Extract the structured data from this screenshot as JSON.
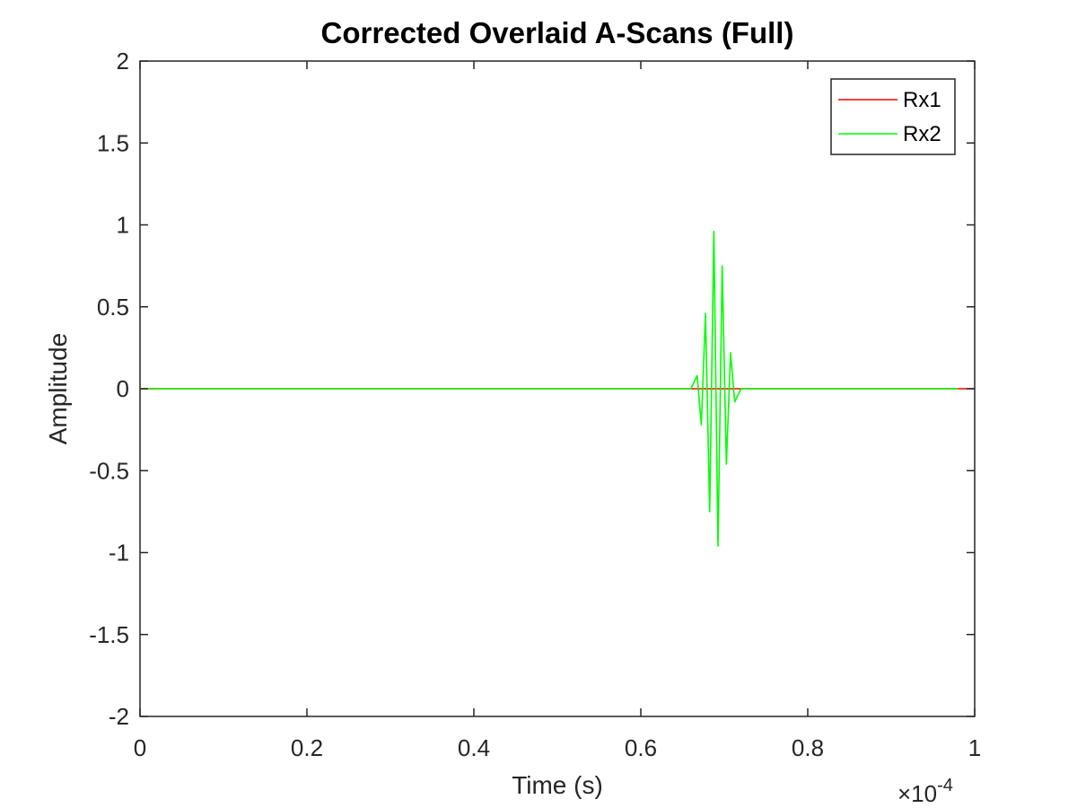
{
  "chart_data": {
    "type": "line",
    "title": "Corrected Overlaid A-Scans (Full)",
    "xlabel": "Time (s)",
    "ylabel": "Amplitude",
    "x_exponent_label": "×10",
    "x_exponent_power": "-4",
    "xlim": [
      0,
      0.0001
    ],
    "ylim": [
      -2,
      2
    ],
    "x_ticks": [
      0,
      0.2,
      0.4,
      0.6,
      0.8,
      1
    ],
    "x_tick_labels": [
      "0",
      "0.2",
      "0.4",
      "0.6",
      "0.8",
      "1"
    ],
    "y_ticks": [
      -2,
      -1.5,
      -1,
      -0.5,
      0,
      0.5,
      1,
      1.5,
      2
    ],
    "y_tick_labels": [
      "-2",
      "-1.5",
      "-1",
      "-0.5",
      "0",
      "0.5",
      "1",
      "1.5",
      "2"
    ],
    "x_tick_scale": 0.0001,
    "grid": false,
    "legend_position": "top-right",
    "series": [
      {
        "name": "Rx1",
        "color": "#ff0000",
        "x": [
          0,
          9.8e-05,
          0.0001
        ],
        "y": [
          0,
          0,
          0
        ]
      },
      {
        "name": "Rx2",
        "color": "#00ff00",
        "x": [
          0,
          6.6e-05,
          6.675e-05,
          6.725e-05,
          6.775e-05,
          6.825e-05,
          6.875e-05,
          6.925e-05,
          6.975e-05,
          7.025e-05,
          7.075e-05,
          7.125e-05,
          7.2e-05,
          9.8e-05
        ],
        "y": [
          0,
          0,
          0.08,
          -0.22,
          0.46,
          -0.75,
          0.96,
          -0.96,
          0.75,
          -0.46,
          0.22,
          -0.08,
          0,
          0
        ]
      }
    ]
  }
}
